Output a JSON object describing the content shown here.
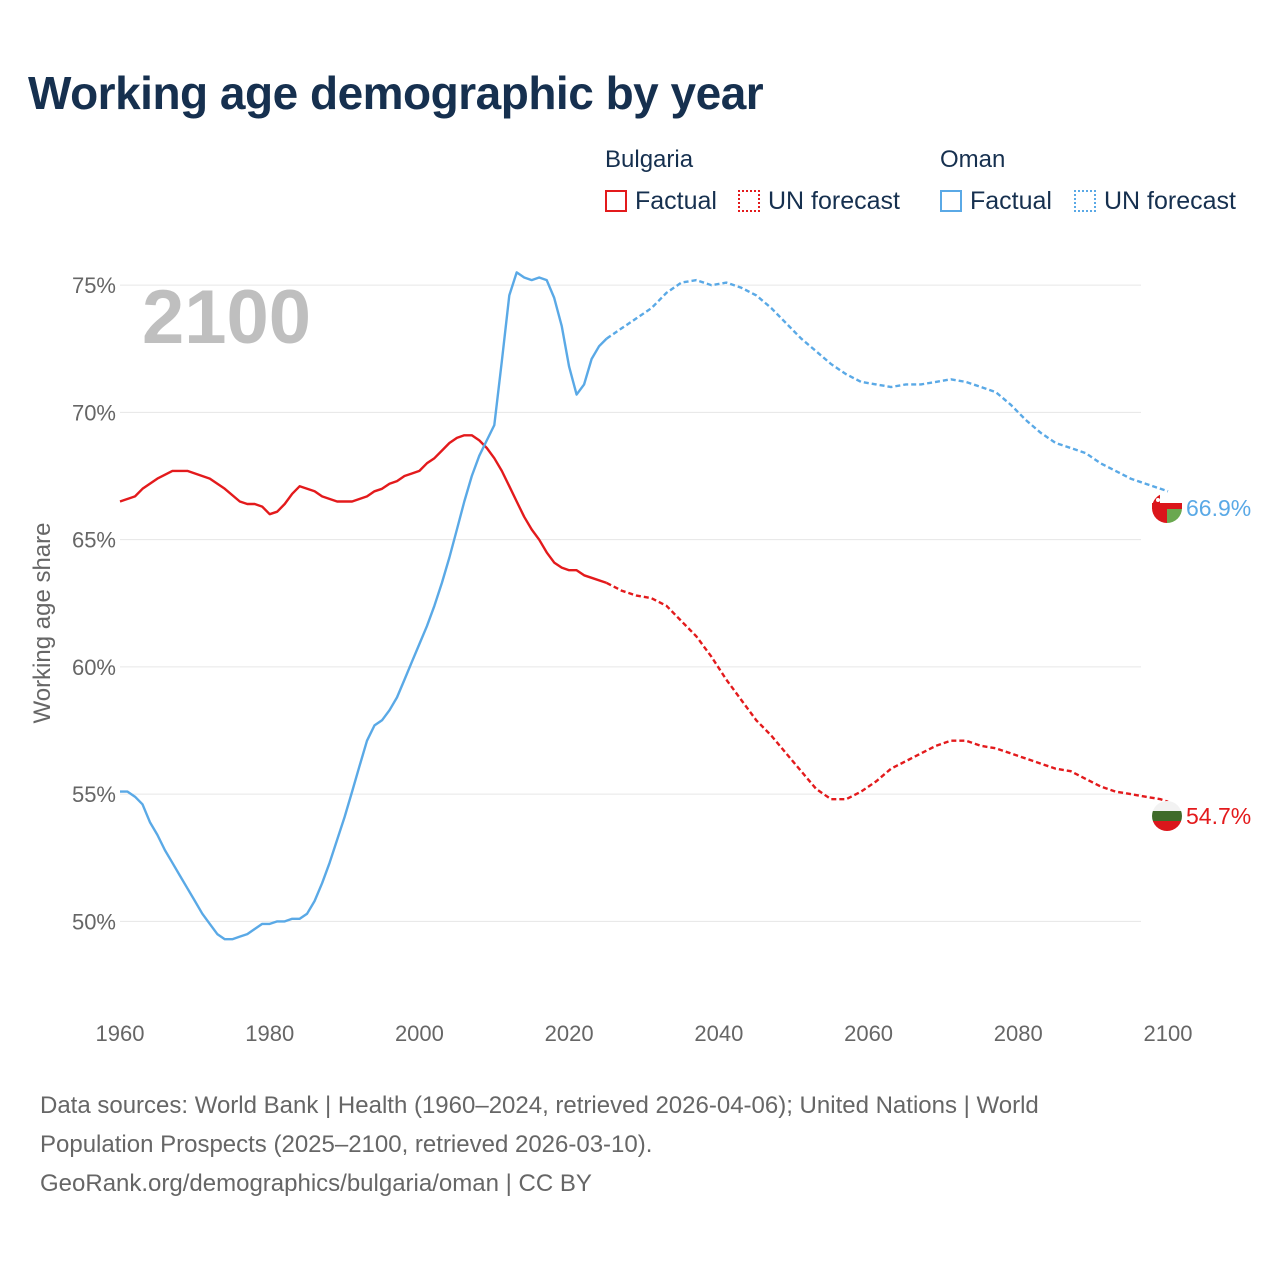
{
  "title": "Working age demographic by year",
  "year_overlay": "2100",
  "legend": {
    "groups": [
      {
        "name": "Bulgaria",
        "factual_label": "Factual",
        "forecast_label": "UN forecast",
        "color": "#e31a1c"
      },
      {
        "name": "Oman",
        "factual_label": "Factual",
        "forecast_label": "UN forecast",
        "color": "#5aa9e6"
      }
    ]
  },
  "end_labels": {
    "oman": "66.9%",
    "bulgaria": "54.7%"
  },
  "sources": {
    "line1": "Data sources: World Bank | Health (1960–2024, retrieved 2026-04-06); United Nations | World",
    "line2": "Population Prospects (2025–2100, retrieved 2026-03-10).",
    "line3": "GeoRank.org/demographics/bulgaria/oman | CC BY"
  },
  "chart_data": {
    "type": "line",
    "title": "Working age demographic by year",
    "xlabel": "",
    "ylabel": "Working age share",
    "xlim": [
      1960,
      2100
    ],
    "ylim": [
      47.5,
      76.5
    ],
    "x_ticks": [
      1960,
      1980,
      2000,
      2020,
      2040,
      2060,
      2080,
      2100
    ],
    "y_ticks": [
      50,
      55,
      60,
      65,
      70,
      75
    ],
    "y_tick_labels": [
      "50%",
      "55%",
      "60%",
      "65%",
      "70%",
      "75%"
    ],
    "grid": true,
    "forecast_start": 2025,
    "series": [
      {
        "name": "Bulgaria",
        "color": "#e31a1c",
        "x": [
          1960,
          1962,
          1963,
          1965,
          1967,
          1969,
          1972,
          1974,
          1976,
          1977,
          1978,
          1979,
          1980,
          1981,
          1982,
          1983,
          1984,
          1986,
          1987,
          1989,
          1991,
          1993,
          1994,
          1995,
          1996,
          1997,
          1998,
          1999,
          2000,
          2001,
          2002,
          2003,
          2004,
          2005,
          2006,
          2007,
          2008,
          2009,
          2010,
          2011,
          2012,
          2013,
          2014,
          2015,
          2016,
          2017,
          2018,
          2019,
          2020,
          2021,
          2022,
          2023,
          2025,
          2027,
          2029,
          2031,
          2033,
          2035,
          2037,
          2039,
          2041,
          2043,
          2045,
          2047,
          2049,
          2051,
          2053,
          2055,
          2057,
          2059,
          2061,
          2063,
          2065,
          2067,
          2069,
          2071,
          2073,
          2075,
          2077,
          2079,
          2081,
          2083,
          2085,
          2087,
          2089,
          2091,
          2093,
          2095,
          2097,
          2099,
          2100
        ],
        "values": [
          66.5,
          66.7,
          67.0,
          67.4,
          67.7,
          67.7,
          67.4,
          67.0,
          66.5,
          66.4,
          66.4,
          66.3,
          66.0,
          66.1,
          66.4,
          66.8,
          67.1,
          66.9,
          66.7,
          66.5,
          66.5,
          66.7,
          66.9,
          67.0,
          67.2,
          67.3,
          67.5,
          67.6,
          67.7,
          68.0,
          68.2,
          68.5,
          68.8,
          69.0,
          69.1,
          69.1,
          68.9,
          68.6,
          68.2,
          67.7,
          67.1,
          66.5,
          65.9,
          65.4,
          65.0,
          64.5,
          64.1,
          63.9,
          63.8,
          63.8,
          63.6,
          63.5,
          63.3,
          63.0,
          62.8,
          62.7,
          62.4,
          61.8,
          61.2,
          60.4,
          59.5,
          58.7,
          57.9,
          57.3,
          56.6,
          55.9,
          55.2,
          54.8,
          54.8,
          55.1,
          55.5,
          56.0,
          56.3,
          56.6,
          56.9,
          57.1,
          57.1,
          56.9,
          56.8,
          56.6,
          56.4,
          56.2,
          56.0,
          55.9,
          55.6,
          55.3,
          55.1,
          55.0,
          54.9,
          54.8,
          54.7
        ]
      },
      {
        "name": "Oman",
        "color": "#5aa9e6",
        "x": [
          1960,
          1961,
          1962,
          1963,
          1964,
          1965,
          1966,
          1967,
          1968,
          1969,
          1970,
          1971,
          1972,
          1973,
          1974,
          1975,
          1976,
          1977,
          1978,
          1979,
          1980,
          1981,
          1982,
          1983,
          1984,
          1985,
          1986,
          1987,
          1988,
          1989,
          1990,
          1991,
          1992,
          1993,
          1994,
          1995,
          1996,
          1997,
          1998,
          1999,
          2000,
          2001,
          2002,
          2003,
          2004,
          2005,
          2006,
          2007,
          2008,
          2009,
          2010,
          2011,
          2012,
          2013,
          2014,
          2015,
          2016,
          2017,
          2018,
          2019,
          2020,
          2021,
          2022,
          2023,
          2024,
          2025,
          2027,
          2029,
          2031,
          2033,
          2035,
          2037,
          2039,
          2041,
          2043,
          2045,
          2047,
          2049,
          2051,
          2053,
          2055,
          2057,
          2059,
          2061,
          2063,
          2065,
          2067,
          2069,
          2071,
          2073,
          2075,
          2077,
          2079,
          2081,
          2083,
          2085,
          2087,
          2089,
          2091,
          2093,
          2095,
          2097,
          2099,
          2100
        ],
        "values": [
          55.1,
          55.1,
          54.9,
          54.6,
          53.9,
          53.4,
          52.8,
          52.3,
          51.8,
          51.3,
          50.8,
          50.3,
          49.9,
          49.5,
          49.3,
          49.3,
          49.4,
          49.5,
          49.7,
          49.9,
          49.9,
          50.0,
          50.0,
          50.1,
          50.1,
          50.3,
          50.8,
          51.5,
          52.3,
          53.2,
          54.1,
          55.1,
          56.1,
          57.1,
          57.7,
          57.9,
          58.3,
          58.8,
          59.5,
          60.2,
          60.9,
          61.6,
          62.4,
          63.3,
          64.3,
          65.4,
          66.5,
          67.5,
          68.3,
          68.9,
          69.5,
          72.0,
          74.6,
          75.5,
          75.3,
          75.2,
          75.3,
          75.2,
          74.5,
          73.4,
          71.8,
          70.7,
          71.1,
          72.1,
          72.6,
          72.9,
          73.3,
          73.7,
          74.1,
          74.7,
          75.1,
          75.2,
          75.0,
          75.1,
          74.9,
          74.6,
          74.1,
          73.5,
          72.9,
          72.4,
          71.9,
          71.5,
          71.2,
          71.1,
          71.0,
          71.1,
          71.1,
          71.2,
          71.3,
          71.2,
          71.0,
          70.8,
          70.3,
          69.7,
          69.2,
          68.8,
          68.6,
          68.4,
          68.0,
          67.7,
          67.4,
          67.2,
          67.0,
          66.9
        ]
      }
    ]
  }
}
